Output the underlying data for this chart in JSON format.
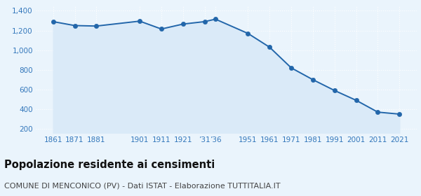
{
  "years": [
    1861,
    1871,
    1881,
    1901,
    1911,
    1921,
    1931,
    1936,
    1951,
    1961,
    1971,
    1981,
    1991,
    2001,
    2011,
    2021
  ],
  "population": [
    1290,
    1250,
    1245,
    1295,
    1215,
    1265,
    1290,
    1315,
    1170,
    1030,
    820,
    700,
    590,
    490,
    370,
    350
  ],
  "y_ticks": [
    200,
    400,
    600,
    800,
    1000,
    1200,
    1400
  ],
  "ylim": [
    155,
    1450
  ],
  "xlim": [
    1853,
    2029
  ],
  "line_color": "#2266aa",
  "fill_color": "#daeaf8",
  "marker_color": "#2266aa",
  "bg_color": "#eaf4fc",
  "grid_color": "#ffffff",
  "title": "Popolazione residente ai censimenti",
  "subtitle": "COMUNE DI MENCONICO (PV) - Dati ISTAT - Elaborazione TUTTITALIA.IT",
  "title_color": "#111111",
  "subtitle_color": "#444444",
  "tick_label_color": "#3377bb",
  "title_fontsize": 10.5,
  "subtitle_fontsize": 8,
  "marker_size": 20
}
